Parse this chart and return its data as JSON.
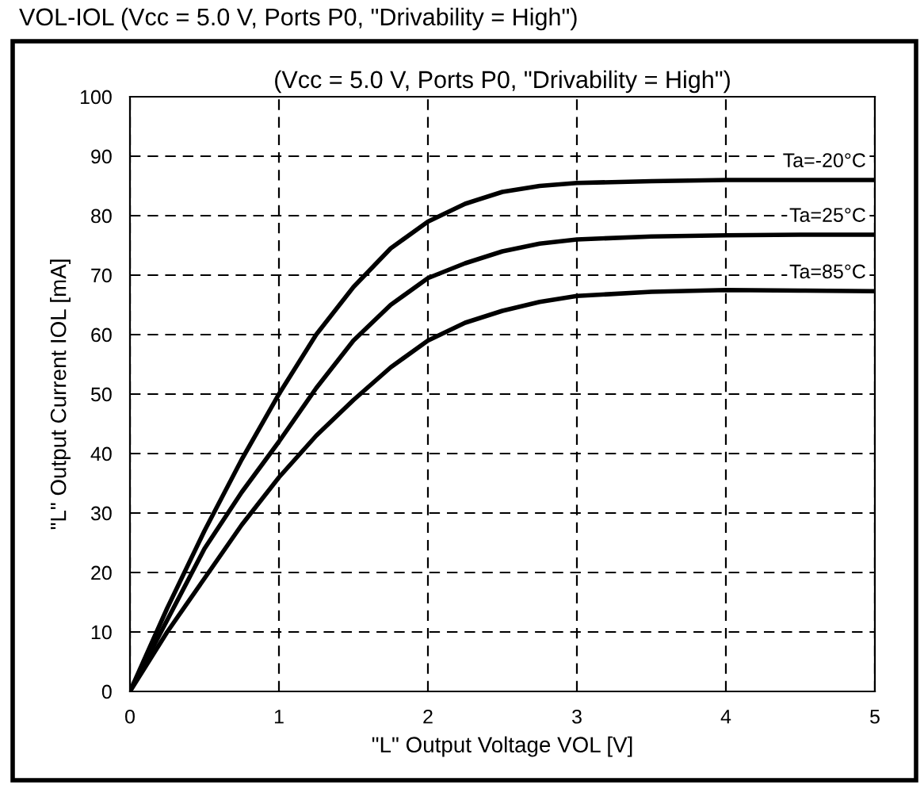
{
  "chart_data": {
    "type": "line",
    "title": "VOL-IOL (Vcc = 5.0 V, Ports P0, \"Drivability = High\")",
    "subtitle": "(Vcc = 5.0 V, Ports P0, \"Drivability = High\")",
    "xlabel": "\"L\" Output Voltage VOL [V]",
    "ylabel": "\"L\" Output Current IOL [mA]",
    "x": [
      0,
      0.25,
      0.5,
      0.75,
      1,
      1.25,
      1.5,
      1.75,
      2,
      2.25,
      2.5,
      2.75,
      3,
      3.5,
      4,
      4.5,
      5
    ],
    "series": [
      {
        "name": "Ta=-20°C",
        "color": "#000000",
        "values": [
          0,
          14,
          27,
          39,
          50,
          60,
          68,
          74.5,
          79,
          82,
          84,
          85,
          85.5,
          85.8,
          86,
          86,
          86
        ]
      },
      {
        "name": "Ta=25°C",
        "color": "#000000",
        "values": [
          0,
          12,
          24,
          33.5,
          42,
          51,
          59,
          65,
          69.5,
          72,
          74,
          75.3,
          76,
          76.5,
          76.7,
          76.8,
          76.8
        ]
      },
      {
        "name": "Ta=85°C",
        "color": "#000000",
        "values": [
          0,
          10,
          19,
          28,
          36,
          43,
          49,
          54.5,
          59,
          62,
          64,
          65.5,
          66.5,
          67.2,
          67.5,
          67.4,
          67.3
        ]
      }
    ],
    "xlim": [
      0,
      5
    ],
    "ylim": [
      0,
      100
    ],
    "xticks": [
      0,
      1,
      2,
      3,
      4,
      5
    ],
    "yticks": [
      0,
      10,
      20,
      30,
      40,
      50,
      60,
      70,
      80,
      90,
      100
    ],
    "grid": true,
    "line_style": "solid",
    "marker": "none",
    "legend": false
  }
}
